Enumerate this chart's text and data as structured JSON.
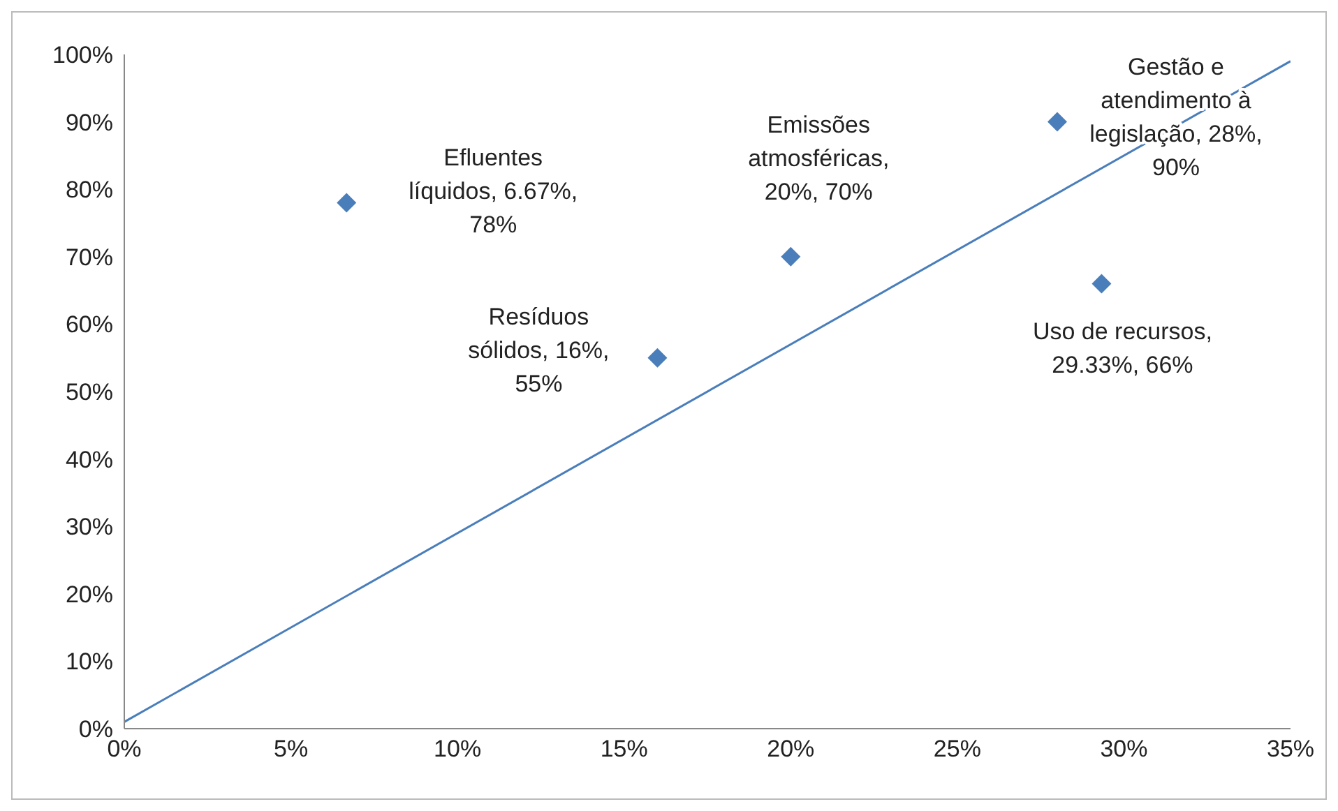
{
  "chart_data": {
    "type": "scatter",
    "marker": "diamond",
    "grid": false,
    "legend": false,
    "x": [
      6.67,
      16,
      20,
      28,
      29.33
    ],
    "xlim": [
      0,
      35
    ],
    "xticks": [
      {
        "value": 0,
        "label": "0%"
      },
      {
        "value": 5,
        "label": "5%"
      },
      {
        "value": 10,
        "label": "10%"
      },
      {
        "value": 15,
        "label": "15%"
      },
      {
        "value": 20,
        "label": "20%"
      },
      {
        "value": 25,
        "label": "25%"
      },
      {
        "value": 30,
        "label": "30%"
      },
      {
        "value": 35,
        "label": "35%"
      }
    ],
    "ylim": [
      0,
      100
    ],
    "yticks": [
      {
        "value": 0,
        "label": "0%"
      },
      {
        "value": 10,
        "label": "10%"
      },
      {
        "value": 20,
        "label": "20%"
      },
      {
        "value": 30,
        "label": "30%"
      },
      {
        "value": 40,
        "label": "40%"
      },
      {
        "value": 50,
        "label": "50%"
      },
      {
        "value": 60,
        "label": "60%"
      },
      {
        "value": 70,
        "label": "70%"
      },
      {
        "value": 80,
        "label": "80%"
      },
      {
        "value": 90,
        "label": "90%"
      },
      {
        "value": 100,
        "label": "100%"
      }
    ],
    "series": [
      {
        "color": "#4a7ebb",
        "values": [
          78,
          55,
          70,
          90,
          66
        ]
      },
      {
        "type": "line",
        "color": "#4a7ebb",
        "marker": "none",
        "x": [
          0,
          35
        ],
        "values": [
          1,
          99
        ]
      }
    ],
    "annotations": [
      {
        "text": "Efluentes líquidos, 6.67%, 78%",
        "x": 6.67,
        "y": 78
      },
      {
        "text": "Resíduos sólidos, 16%, 55%",
        "x": 16,
        "y": 55
      },
      {
        "text": "Emissões atmosféricas, 20%, 70%",
        "x": 20,
        "y": 70
      },
      {
        "text": "Gestão e atendimento à legislação, 28%, 90%",
        "x": 28,
        "y": 90
      },
      {
        "text": "Uso de recursos, 29.33%, 66%",
        "x": 29.33,
        "y": 66
      }
    ]
  }
}
